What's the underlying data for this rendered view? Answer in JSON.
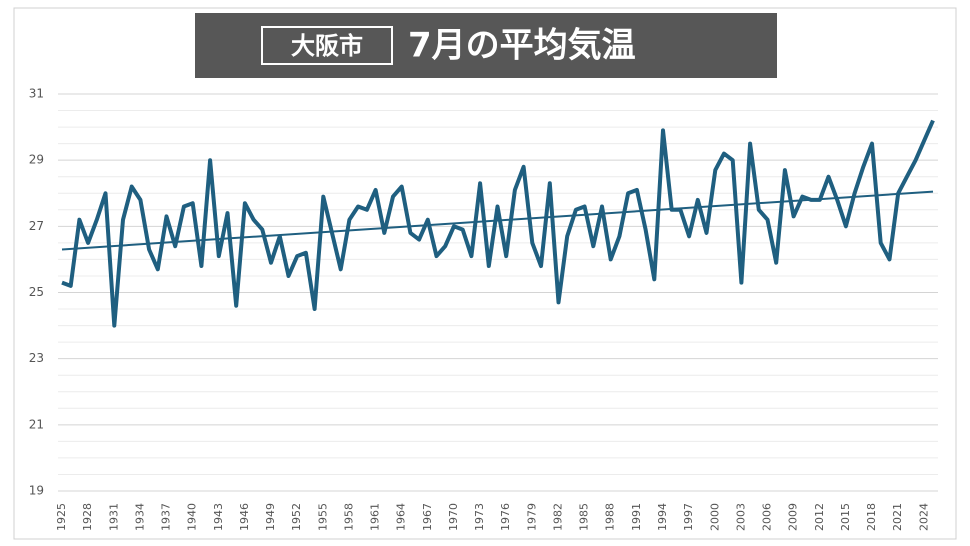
{
  "chart_data": {
    "type": "line",
    "title_tag": "大阪市",
    "title": "7月の平均気温",
    "categories": [
      "1925",
      null,
      null,
      "1928",
      null,
      null,
      "1931",
      null,
      null,
      "1934",
      null,
      null,
      "1937",
      null,
      null,
      "1940",
      null,
      null,
      "1943",
      null,
      null,
      "1946",
      null,
      null,
      "1949",
      null,
      null,
      "1952",
      null,
      null,
      "1955",
      null,
      null,
      "1958",
      null,
      null,
      "1961",
      null,
      null,
      "1964",
      null,
      null,
      "1967",
      null,
      null,
      "1970",
      null,
      null,
      "1973",
      null,
      null,
      "1976",
      null,
      null,
      "1979",
      null,
      null,
      "1982",
      null,
      null,
      "1985",
      null,
      null,
      "1988",
      null,
      null,
      "1991",
      null,
      null,
      "1994",
      null,
      null,
      "1997",
      null,
      null,
      "2000",
      null,
      null,
      "2003",
      null,
      null,
      "2006",
      null,
      null,
      "2009",
      null,
      null,
      "2012",
      null,
      null,
      "2015",
      null,
      null,
      "2018",
      null,
      null,
      "2021",
      null,
      null,
      "2024",
      null
    ],
    "values": [
      25.3,
      25.2,
      27.2,
      26.5,
      27.2,
      28.0,
      24.0,
      27.2,
      28.2,
      27.8,
      26.3,
      25.7,
      27.3,
      26.4,
      27.6,
      27.7,
      25.8,
      29.0,
      26.1,
      27.4,
      24.6,
      27.7,
      27.2,
      26.9,
      25.9,
      26.7,
      25.5,
      26.1,
      26.2,
      24.5,
      27.9,
      26.8,
      25.7,
      27.2,
      27.6,
      27.5,
      28.1,
      26.8,
      27.9,
      28.2,
      26.8,
      26.6,
      27.2,
      26.1,
      26.4,
      27.0,
      26.9,
      26.1,
      28.3,
      25.8,
      27.6,
      26.1,
      28.1,
      28.8,
      26.5,
      25.8,
      28.3,
      24.7,
      26.7,
      27.5,
      27.6,
      26.4,
      27.6,
      26.0,
      26.7,
      28.0,
      28.1,
      26.9,
      25.4,
      29.9,
      27.5,
      27.5,
      26.7,
      27.8,
      26.8,
      28.7,
      29.2,
      29.0,
      25.3,
      29.5,
      27.5,
      27.2,
      25.9,
      28.7,
      27.3,
      27.9,
      27.8,
      27.8,
      28.5,
      27.8,
      27.0,
      28.0,
      28.8,
      29.5,
      26.5,
      26.0,
      28.0,
      28.5,
      29.0,
      29.6,
      30.2
    ],
    "color": "#1f5f80",
    "trend": {
      "start": 26.3,
      "end": 28.05
    },
    "ylim": [
      19,
      31
    ],
    "yticks": [
      19,
      21,
      23,
      25,
      27,
      29,
      31
    ],
    "grid": true
  }
}
